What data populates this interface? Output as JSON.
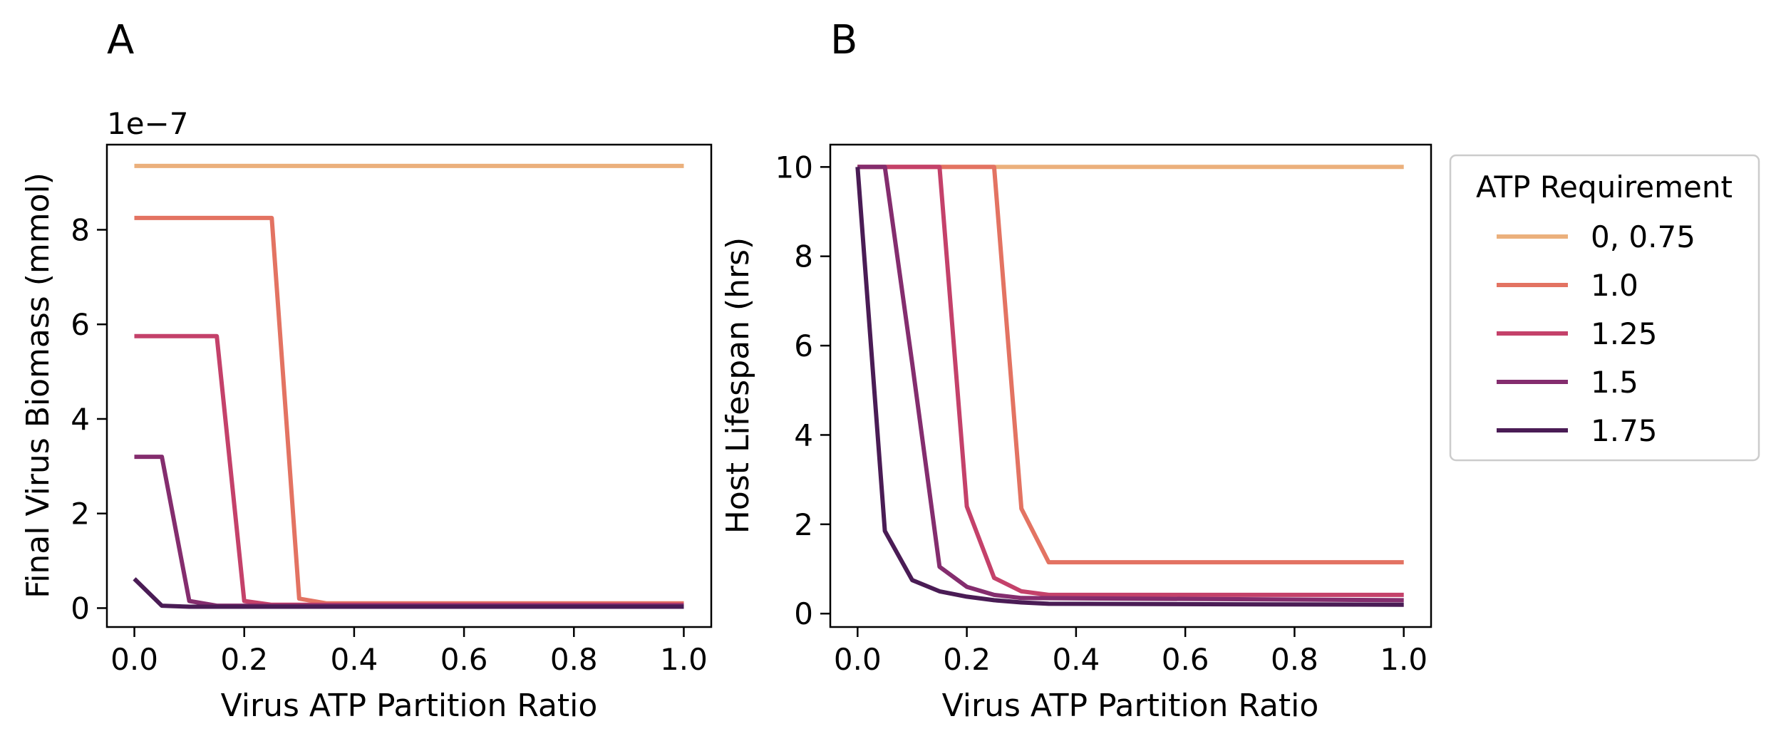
{
  "figure": {
    "legend": {
      "title": "ATP Requirement",
      "placement": "outside-right of panel B",
      "entries": [
        {
          "label": "0, 0.75",
          "color": "#EBB07C"
        },
        {
          "label": "1.0",
          "color": "#E37362"
        },
        {
          "label": "1.25",
          "color": "#C4416A"
        },
        {
          "label": "1.5",
          "color": "#842D6E"
        },
        {
          "label": "1.75",
          "color": "#4A1C55"
        }
      ]
    }
  },
  "chart_data": [
    {
      "type": "line",
      "panel_label": "A",
      "xlabel": "Virus ATP Partition Ratio",
      "ylabel": "Final Virus Biomass (mmol)",
      "y_offset_label": "1e−7",
      "xlim": [
        -0.05,
        1.05
      ],
      "ylim": [
        -0.4,
        9.8
      ],
      "xticks": [
        0.0,
        0.2,
        0.4,
        0.6,
        0.8,
        1.0
      ],
      "xtick_labels": [
        "0.0",
        "0.2",
        "0.4",
        "0.6",
        "0.8",
        "1.0"
      ],
      "yticks": [
        0,
        2,
        4,
        6,
        8
      ],
      "ytick_labels": [
        "0",
        "2",
        "4",
        "6",
        "8"
      ],
      "grid": false,
      "series": [
        {
          "color": "#EBB07C",
          "x": [
            0,
            1.0
          ],
          "y": [
            9.35,
            9.35
          ]
        },
        {
          "color": "#E37362",
          "x": [
            0,
            0.25,
            0.3,
            0.35,
            1.0
          ],
          "y": [
            8.25,
            8.25,
            0.2,
            0.1,
            0.1
          ]
        },
        {
          "color": "#C4416A",
          "x": [
            0,
            0.15,
            0.2,
            0.25,
            1.0
          ],
          "y": [
            5.75,
            5.75,
            0.15,
            0.07,
            0.07
          ]
        },
        {
          "color": "#842D6E",
          "x": [
            0,
            0.05,
            0.1,
            0.15,
            1.0
          ],
          "y": [
            3.2,
            3.2,
            0.15,
            0.05,
            0.05
          ]
        },
        {
          "color": "#4A1C55",
          "x": [
            0,
            0.05,
            0.1,
            1.0
          ],
          "y": [
            0.62,
            0.05,
            0.03,
            0.03
          ]
        }
      ]
    },
    {
      "type": "line",
      "panel_label": "B",
      "xlabel": "Virus ATP Partition Ratio",
      "ylabel": "Host Lifespan (hrs)",
      "xlim": [
        -0.05,
        1.05
      ],
      "ylim": [
        -0.3,
        10.5
      ],
      "xticks": [
        0.0,
        0.2,
        0.4,
        0.6,
        0.8,
        1.0
      ],
      "xtick_labels": [
        "0.0",
        "0.2",
        "0.4",
        "0.6",
        "0.8",
        "1.0"
      ],
      "yticks": [
        0,
        2,
        4,
        6,
        8,
        10
      ],
      "ytick_labels": [
        "0",
        "2",
        "4",
        "6",
        "8",
        "10"
      ],
      "grid": false,
      "series": [
        {
          "color": "#EBB07C",
          "x": [
            0,
            1.0
          ],
          "y": [
            10,
            10
          ]
        },
        {
          "color": "#E37362",
          "x": [
            0,
            0.25,
            0.3,
            0.35,
            1.0
          ],
          "y": [
            10,
            10,
            2.35,
            1.15,
            1.15
          ]
        },
        {
          "color": "#C4416A",
          "x": [
            0,
            0.15,
            0.2,
            0.25,
            0.3,
            0.35,
            1.0
          ],
          "y": [
            10,
            10,
            2.4,
            0.8,
            0.5,
            0.42,
            0.42
          ]
        },
        {
          "color": "#842D6E",
          "x": [
            0,
            0.05,
            0.1,
            0.15,
            0.2,
            0.25,
            0.3,
            1.0
          ],
          "y": [
            10,
            10,
            5.6,
            1.05,
            0.6,
            0.42,
            0.35,
            0.3
          ]
        },
        {
          "color": "#4A1C55",
          "x": [
            0,
            0.05,
            0.1,
            0.15,
            0.2,
            0.25,
            0.3,
            0.35,
            1.0
          ],
          "y": [
            10,
            1.85,
            0.75,
            0.5,
            0.38,
            0.3,
            0.25,
            0.22,
            0.2
          ]
        }
      ]
    }
  ]
}
